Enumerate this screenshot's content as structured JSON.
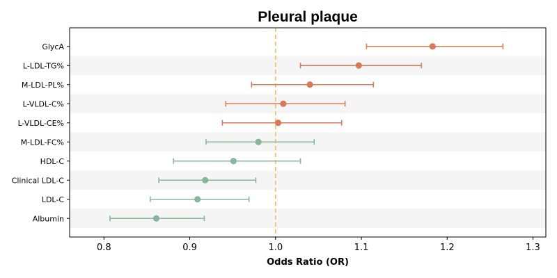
{
  "chart_data": {
    "type": "forest",
    "title": "Pleural plaque",
    "xlabel": "Odds Ratio (OR)",
    "xlim": [
      0.76,
      1.315
    ],
    "xticks": [
      0.8,
      0.9,
      1.0,
      1.1,
      1.2,
      1.3
    ],
    "xtick_labels": [
      "0.8",
      "0.9",
      "1.0",
      "1.1",
      "1.2",
      "1.3"
    ],
    "reference_line": 1.0,
    "grid": false,
    "colors": {
      "positive": "#d9785b",
      "negative": "#88b69c",
      "reference": "#f0c060",
      "band": "#f5f5f5"
    },
    "items": [
      {
        "label": "GlycA",
        "or": 1.183,
        "lower": 1.106,
        "upper": 1.265,
        "direction": "positive"
      },
      {
        "label": "L-LDL-TG%",
        "or": 1.097,
        "lower": 1.029,
        "upper": 1.17,
        "direction": "positive"
      },
      {
        "label": "M-LDL-PL%",
        "or": 1.04,
        "lower": 0.972,
        "upper": 1.114,
        "direction": "positive"
      },
      {
        "label": "L-VLDL-C%",
        "or": 1.009,
        "lower": 0.942,
        "upper": 1.081,
        "direction": "positive"
      },
      {
        "label": "L-VLDL-CE%",
        "or": 1.003,
        "lower": 0.938,
        "upper": 1.077,
        "direction": "positive"
      },
      {
        "label": "M-LDL-FC%",
        "or": 0.98,
        "lower": 0.919,
        "upper": 1.045,
        "direction": "negative"
      },
      {
        "label": "HDL-C",
        "or": 0.951,
        "lower": 0.881,
        "upper": 1.029,
        "direction": "negative"
      },
      {
        "label": "Clinical LDL-C",
        "or": 0.918,
        "lower": 0.864,
        "upper": 0.977,
        "direction": "negative"
      },
      {
        "label": "LDL-C",
        "or": 0.909,
        "lower": 0.854,
        "upper": 0.969,
        "direction": "negative"
      },
      {
        "label": "Albumin",
        "or": 0.861,
        "lower": 0.807,
        "upper": 0.917,
        "direction": "negative"
      }
    ]
  }
}
